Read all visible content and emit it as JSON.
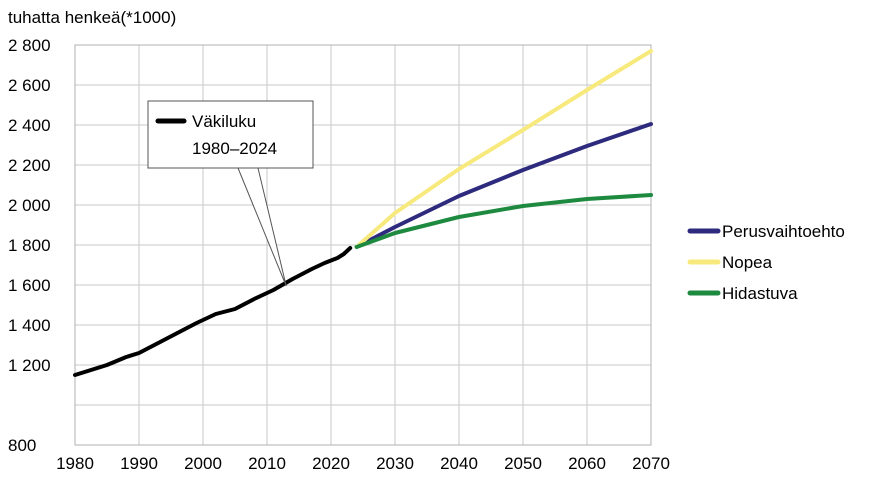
{
  "chart_data": {
    "type": "line",
    "ylabel": "tuhatta henkeä(*1000)",
    "xlabel": "",
    "xlim": [
      1980,
      2070
    ],
    "ylim": [
      800,
      2800
    ],
    "x_ticks": [
      "1980",
      "1990",
      "2000",
      "2010",
      "2020",
      "2030",
      "2040",
      "2050",
      "2060",
      "2070"
    ],
    "y_ticks": [
      "800",
      "1 200",
      "1 400",
      "1 600",
      "1 800",
      "2 000",
      "2 200",
      "2 400",
      "2 600",
      "2 800"
    ],
    "grid": true,
    "legend_position": "right",
    "annotation": {
      "lines": [
        "Väkiluku",
        "1980–2024"
      ],
      "points_to": {
        "x": 2013,
        "y": 1595
      }
    },
    "series": [
      {
        "name": "",
        "color": "#000000",
        "x": [
          1980,
          1985,
          1988,
          1990,
          1993,
          1996,
          1999,
          2002,
          2005,
          2008,
          2011,
          2014,
          2017,
          2019,
          2021,
          2022,
          2023
        ],
        "y": [
          1150,
          1200,
          1240,
          1260,
          1310,
          1360,
          1410,
          1455,
          1480,
          1530,
          1575,
          1630,
          1680,
          1710,
          1735,
          1755,
          1785
        ]
      },
      {
        "name": "Perusvaihtoehto",
        "color": "#2e2a7e",
        "x": [
          2024,
          2030,
          2040,
          2050,
          2060,
          2070
        ],
        "y": [
          1790,
          1890,
          2045,
          2175,
          2295,
          2405
        ]
      },
      {
        "name": "Nopea",
        "color": "#f7e97c",
        "x": [
          2024,
          2030,
          2040,
          2050,
          2060,
          2070
        ],
        "y": [
          1790,
          1960,
          2180,
          2375,
          2575,
          2770
        ]
      },
      {
        "name": "Hidastuva",
        "color": "#1e8a40",
        "x": [
          2024,
          2030,
          2040,
          2050,
          2060,
          2070
        ],
        "y": [
          1790,
          1860,
          1940,
          1995,
          2030,
          2050
        ]
      }
    ]
  }
}
